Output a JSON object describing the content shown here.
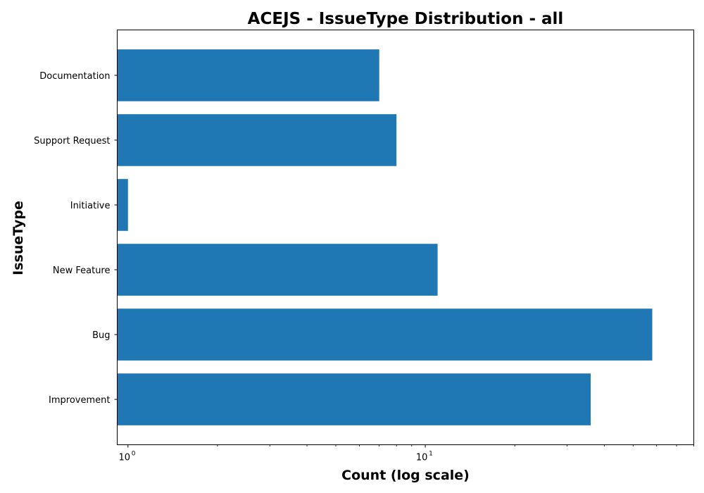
{
  "chart_data": {
    "type": "bar",
    "orientation": "horizontal",
    "title": "ACEJS - IssueType Distribution - all",
    "xlabel": "Count (log scale)",
    "ylabel": "IssueType",
    "x_scale": "log",
    "xlim": [
      0.92,
      80
    ],
    "x_ticks": [
      {
        "base": "10",
        "exp": "0",
        "value": 1
      },
      {
        "base": "10",
        "exp": "1",
        "value": 10
      }
    ],
    "categories": [
      "Improvement",
      "Bug",
      "New Feature",
      "Initiative",
      "Support Request",
      "Documentation"
    ],
    "values": [
      36,
      58,
      11,
      1,
      8,
      7
    ],
    "bar_color": "#1f77b4",
    "grid": false,
    "legend": "none"
  }
}
